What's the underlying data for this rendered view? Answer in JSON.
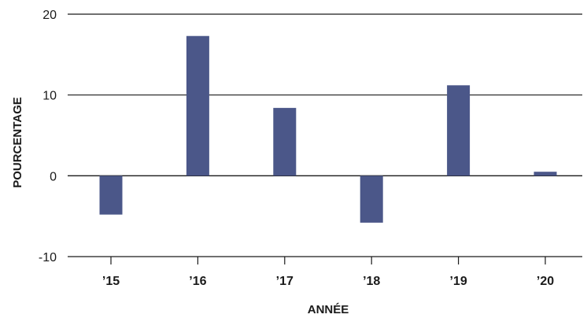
{
  "chart_data": {
    "type": "bar",
    "categories": [
      "’15",
      "’16",
      "’17",
      "’18",
      "’19",
      "’20"
    ],
    "values": [
      -4.8,
      17.3,
      8.4,
      -5.8,
      11.2,
      0.5
    ],
    "xlabel": "ANNÉE",
    "ylabel": "POURCENTAGE",
    "ylim": [
      -10,
      20
    ],
    "yticks": [
      20,
      10,
      0,
      -10
    ],
    "ytick_labels": [
      "20",
      "10",
      "0",
      "-10"
    ],
    "grid": true,
    "bar_color": "#4b5789"
  }
}
